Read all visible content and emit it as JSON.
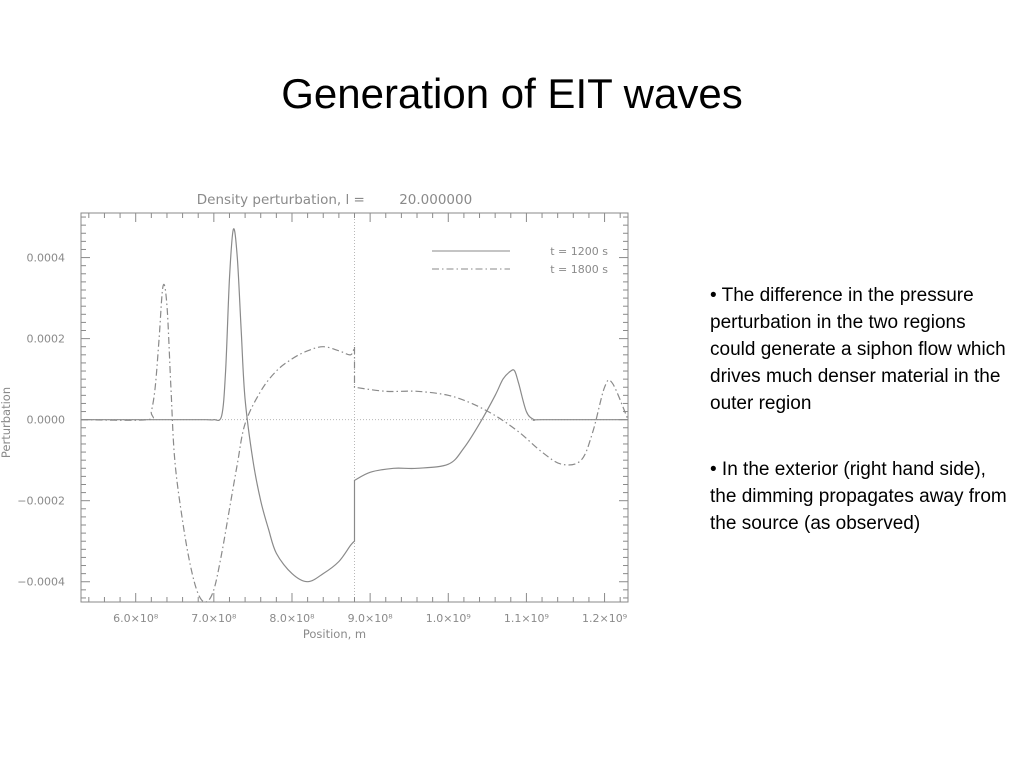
{
  "slide": {
    "title": "Generation of EIT waves",
    "bullets": [
      "• The difference in the pressure perturbation in the two regions could generate a siphon flow which drives much denser material in the outer region",
      "• In the exterior (right hand side), the dimming propagates away from the source (as observed)"
    ]
  },
  "chart_data": {
    "type": "line",
    "title": "Density perturbation, l =        20.000000",
    "xlabel": "Position, m",
    "ylabel": "Perturbation",
    "xlim": [
      530000000.0,
      1230000000.0
    ],
    "ylim": [
      -0.00045,
      0.00051
    ],
    "x_ticks": [
      {
        "value": 600000000.0,
        "label": "6.0×10⁸"
      },
      {
        "value": 700000000.0,
        "label": "7.0×10⁸"
      },
      {
        "value": 800000000.0,
        "label": "8.0×10⁸"
      },
      {
        "value": 900000000.0,
        "label": "9.0×10⁸"
      },
      {
        "value": 1000000000.0,
        "label": "1.0×10⁹"
      },
      {
        "value": 1100000000.0,
        "label": "1.1×10⁹"
      },
      {
        "value": 1200000000.0,
        "label": "1.2×10⁹"
      }
    ],
    "y_ticks": [
      {
        "value": 0.0004,
        "label": "0.0004"
      },
      {
        "value": 0.0002,
        "label": "0.0002"
      },
      {
        "value": 0.0,
        "label": "0.0000"
      },
      {
        "value": -0.0002,
        "label": "−0.0002"
      },
      {
        "value": -0.0004,
        "label": "−0.0004"
      }
    ],
    "reference_lines": {
      "x": 880000000.0,
      "y": 0.0
    },
    "legend_position": "top-right",
    "colors": {
      "line": "#8a8a8a",
      "axis": "#8a8a8a"
    },
    "series": [
      {
        "name": "t = 1200 s",
        "style": "solid",
        "x": [
          530000000.0,
          650000000.0,
          690000000.0,
          700000000.0,
          710000000.0,
          715000000.0,
          720000000.0,
          725000000.0,
          730000000.0,
          735000000.0,
          740000000.0,
          750000000.0,
          760000000.0,
          770000000.0,
          780000000.0,
          800000000.0,
          820000000.0,
          840000000.0,
          860000000.0,
          875000000.0,
          880000000.0,
          880000000.0,
          900000000.0,
          930000000.0,
          960000000.0,
          1000000000.0,
          1020000000.0,
          1040000000.0,
          1060000000.0,
          1070000000.0,
          1080000000.0,
          1085000000.0,
          1090000000.0,
          1100000000.0,
          1110000000.0,
          1120000000.0,
          1230000000.0
        ],
        "y": [
          0.0,
          0.0,
          0.0,
          0.0,
          1e-05,
          0.00012,
          0.00035,
          0.00047,
          0.0004,
          0.00022,
          5e-05,
          -0.0001,
          -0.0002,
          -0.00027,
          -0.00033,
          -0.00038,
          -0.0004,
          -0.00038,
          -0.00035,
          -0.00031,
          -0.0003,
          -0.00015,
          -0.00013,
          -0.00012,
          -0.00012,
          -0.00011,
          -7e-05,
          -1e-05,
          6e-05,
          0.0001,
          0.00012,
          0.00012,
          9e-05,
          2e-05,
          0.0,
          0.0,
          0.0
        ]
      },
      {
        "name": "t = 1800 s",
        "style": "dashdot",
        "x": [
          530000000.0,
          615000000.0,
          620000000.0,
          625000000.0,
          630000000.0,
          635000000.0,
          640000000.0,
          645000000.0,
          650000000.0,
          660000000.0,
          670000000.0,
          680000000.0,
          690000000.0,
          700000000.0,
          710000000.0,
          720000000.0,
          730000000.0,
          740000000.0,
          760000000.0,
          780000000.0,
          800000000.0,
          820000000.0,
          840000000.0,
          860000000.0,
          875000000.0,
          880000000.0,
          880000000.0,
          920000000.0,
          960000000.0,
          1000000000.0,
          1030000000.0,
          1060000000.0,
          1090000000.0,
          1120000000.0,
          1145000000.0,
          1170000000.0,
          1185000000.0,
          1200000000.0,
          1210000000.0,
          1230000000.0
        ],
        "y": [
          0.0,
          0.0,
          2e-05,
          8e-05,
          0.0002,
          0.00033,
          0.00028,
          8e-05,
          -0.0001,
          -0.00025,
          -0.00036,
          -0.00043,
          -0.00045,
          -0.00042,
          -0.00033,
          -0.00022,
          -0.00011,
          -1e-05,
          7e-05,
          0.00012,
          0.00015,
          0.00017,
          0.00018,
          0.00017,
          0.00016,
          0.00018,
          8e-05,
          7e-05,
          7e-05,
          6e-05,
          4e-05,
          1e-05,
          -3e-05,
          -8e-05,
          -0.00011,
          -0.0001,
          -3e-05,
          8e-05,
          9e-05,
          0.0
        ]
      }
    ]
  }
}
